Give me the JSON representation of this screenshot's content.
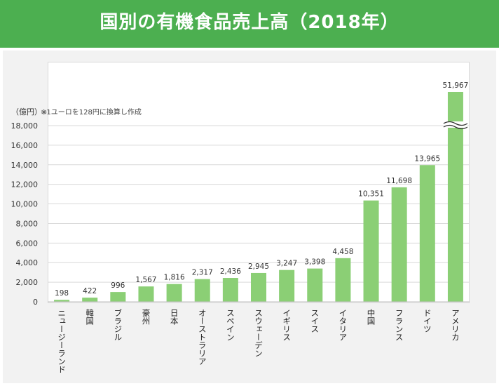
{
  "header": {
    "title": "国別の有機食品売上高（2018年）"
  },
  "note": {
    "unit": "（億円）",
    "unit_star": "※",
    "text": "※1ユーロを128円に換算し作成"
  },
  "colors": {
    "header_bg": "#4caf50",
    "bar": "#8bcf75",
    "grid": "#d9d9d9"
  },
  "chart_data": {
    "type": "bar",
    "title": "国別の有機食品売上高（2018年）",
    "ylabel": "（億円）",
    "xlabel": "",
    "ylim": [
      0,
      18000
    ],
    "yticks": [
      0,
      2000,
      4000,
      6000,
      8000,
      10000,
      12000,
      14000,
      16000,
      18000
    ],
    "axis_break": true,
    "categories": [
      "ニュージーランド",
      "韓国",
      "ブラジル",
      "豪州",
      "日本",
      "オーストラリア",
      "スペイン",
      "スウェーデン",
      "イギリス",
      "スイス",
      "イタリア",
      "中国",
      "フランス",
      "ドイツ",
      "アメリカ"
    ],
    "values": [
      198,
      422,
      996,
      1567,
      1816,
      2317,
      2436,
      2945,
      3247,
      3398,
      4458,
      10351,
      11698,
      13965,
      51967
    ],
    "value_labels": [
      "198",
      "422",
      "996",
      "1,567",
      "1,816",
      "2,317",
      "2,436",
      "2,945",
      "3,247",
      "3,398",
      "4,458",
      "10,351",
      "11,698",
      "13,965",
      "51,967"
    ],
    "ytick_labels": [
      "0",
      "2,000",
      "4,000",
      "6,000",
      "8,000",
      "10,000",
      "12,000",
      "14,000",
      "16,000",
      "18,000"
    ]
  }
}
